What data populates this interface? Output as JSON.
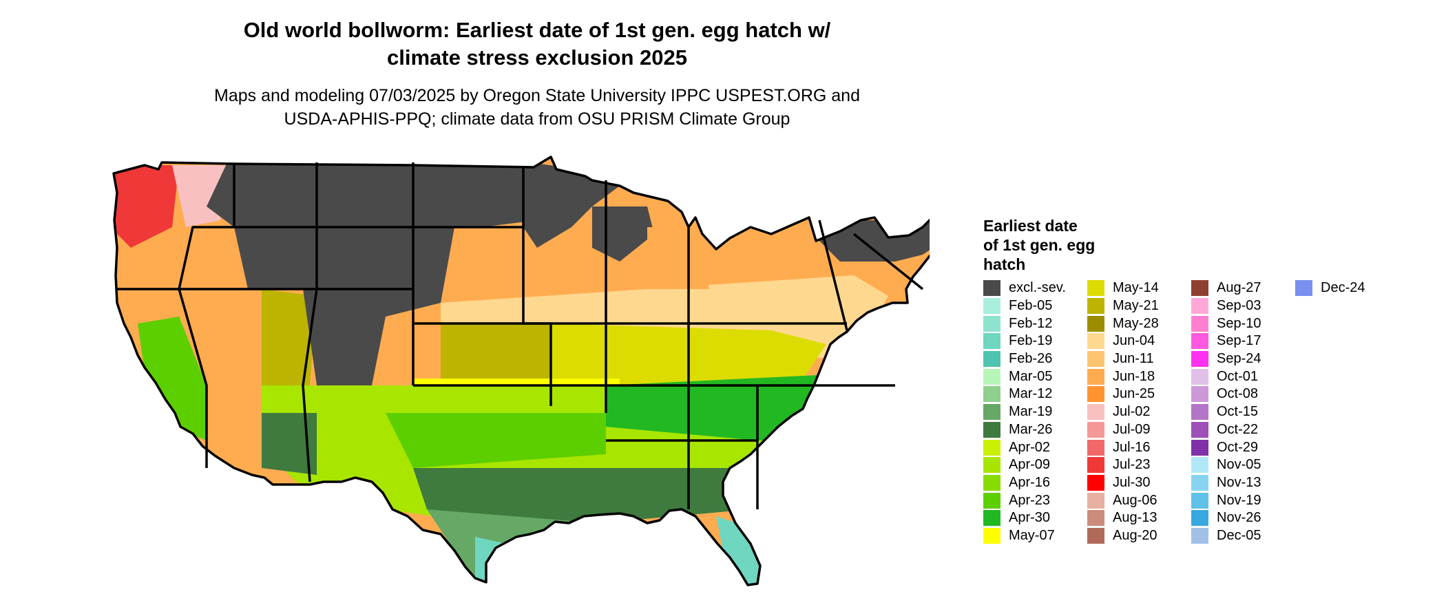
{
  "title": "Old world bollworm: Earliest date of 1st gen. egg hatch w/\nclimate stress exclusion 2025",
  "subtitle": "Maps and modeling 07/03/2025 by Oregon State University IPPC USPEST.ORG and\nUSDA-APHIS-PPQ; climate data from OSU PRISM Climate Group",
  "legend": {
    "title": "Earliest date\nof 1st gen. egg\nhatch",
    "columns": [
      [
        {
          "label": "excl.-sev.",
          "color": "#4a4a4a"
        },
        {
          "label": "Feb-05",
          "color": "#a8f0dc"
        },
        {
          "label": "Feb-12",
          "color": "#8ee3cf"
        },
        {
          "label": "Feb-19",
          "color": "#6fd6c0"
        },
        {
          "label": "Feb-26",
          "color": "#4fc4b0"
        },
        {
          "label": "Mar-05",
          "color": "#b8f5b8"
        },
        {
          "label": "Mar-12",
          "color": "#8fd08f"
        },
        {
          "label": "Mar-19",
          "color": "#66a866"
        },
        {
          "label": "Mar-26",
          "color": "#3f7a3f"
        },
        {
          "label": "Apr-02",
          "color": "#c8f000"
        },
        {
          "label": "Apr-09",
          "color": "#a8e600"
        },
        {
          "label": "Apr-16",
          "color": "#88dc00"
        },
        {
          "label": "Apr-23",
          "color": "#5ccf00"
        },
        {
          "label": "Apr-30",
          "color": "#22b822"
        },
        {
          "label": "May-07",
          "color": "#ffff00"
        }
      ],
      [
        {
          "label": "May-14",
          "color": "#dcdc00"
        },
        {
          "label": "May-21",
          "color": "#bcb400"
        },
        {
          "label": "May-28",
          "color": "#9c8c00"
        },
        {
          "label": "Jun-04",
          "color": "#ffd890"
        },
        {
          "label": "Jun-11",
          "color": "#ffc470"
        },
        {
          "label": "Jun-18",
          "color": "#ffac50"
        },
        {
          "label": "Jun-25",
          "color": "#ff9430"
        },
        {
          "label": "Jul-02",
          "color": "#f8c0c0"
        },
        {
          "label": "Jul-09",
          "color": "#f49898"
        },
        {
          "label": "Jul-16",
          "color": "#f06868"
        },
        {
          "label": "Jul-23",
          "color": "#f03838"
        },
        {
          "label": "Jul-30",
          "color": "#ff0000"
        },
        {
          "label": "Aug-06",
          "color": "#e8b0a0"
        },
        {
          "label": "Aug-13",
          "color": "#cc8c7c"
        },
        {
          "label": "Aug-20",
          "color": "#b06a5a"
        }
      ],
      [
        {
          "label": "Aug-27",
          "color": "#904030"
        },
        {
          "label": "Sep-03",
          "color": "#ffa8d8"
        },
        {
          "label": "Sep-10",
          "color": "#ff80d0"
        },
        {
          "label": "Sep-17",
          "color": "#ff58e0"
        },
        {
          "label": "Sep-24",
          "color": "#ff30f0"
        },
        {
          "label": "Oct-01",
          "color": "#e0c0e8"
        },
        {
          "label": "Oct-08",
          "color": "#cc98d8"
        },
        {
          "label": "Oct-15",
          "color": "#b474c8"
        },
        {
          "label": "Oct-22",
          "color": "#9c50b8"
        },
        {
          "label": "Oct-29",
          "color": "#8030a8"
        },
        {
          "label": "Nov-05",
          "color": "#b0e8f8"
        },
        {
          "label": "Nov-13",
          "color": "#88d4f0"
        },
        {
          "label": "Nov-19",
          "color": "#60c0e8"
        },
        {
          "label": "Nov-26",
          "color": "#38a8e0"
        },
        {
          "label": "Dec-05",
          "color": "#a0c0e8"
        }
      ],
      [
        {
          "label": "Dec-24",
          "color": "#7890f0"
        }
      ]
    ]
  },
  "map": {
    "region": "Contiguous United States",
    "colors": {
      "excluded": "#4a4a4a",
      "north_warm": "#ffd890",
      "orange": "#ffac50",
      "red": "#f03838",
      "pink": "#f8c0c0",
      "olive": "#bcb400",
      "yellow_dk": "#dcdc00",
      "yellow": "#ffff00",
      "lime": "#a8e600",
      "green": "#5ccf00",
      "green_dk": "#22b822",
      "mar_dk": "#3f7a3f",
      "mar_md": "#66a866",
      "teal": "#6fd6c0",
      "border": "#000000"
    }
  }
}
